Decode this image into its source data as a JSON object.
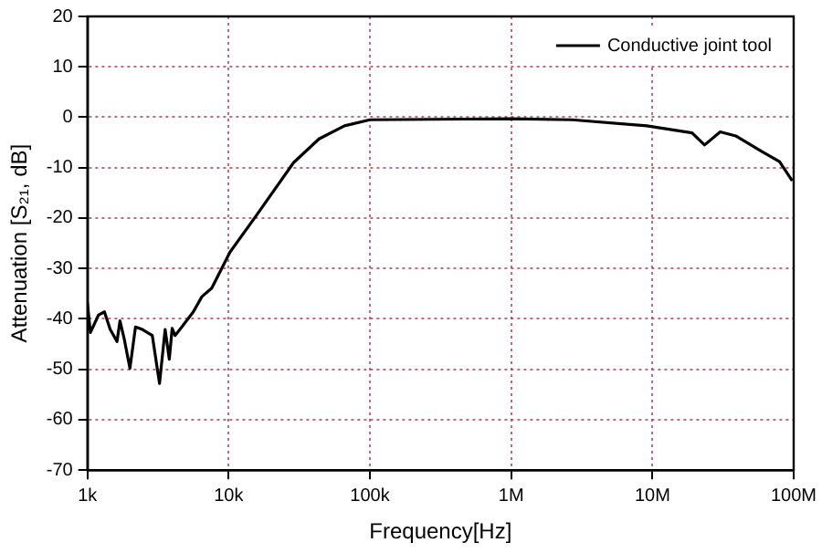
{
  "chart_data": {
    "type": "line",
    "xlabel": "Frequency[Hz]",
    "ylabel": "Attenuation [S₂₁, dB]",
    "x": [
      1000,
      1050,
      1200,
      1320,
      1450,
      1620,
      1700,
      1820,
      2000,
      2190,
      2450,
      2880,
      3240,
      3550,
      3800,
      3980,
      4170,
      4570,
      5620,
      6460,
      7590,
      10200,
      15500,
      28800,
      43600,
      66100,
      100000,
      1000000,
      2690000,
      9120000,
      19100000,
      23400000,
      30200000,
      38900000,
      58900000,
      79400000,
      97700000
    ],
    "series": [
      {
        "name": "Conductive joint tool",
        "color": "#000000",
        "values": [
          -36.8,
          -42.7,
          -39.2,
          -38.6,
          -42.1,
          -44.5,
          -40.4,
          -43.9,
          -49.8,
          -41.6,
          -42.1,
          -43.3,
          -52.8,
          -42.1,
          -48,
          -41.9,
          -43.3,
          -41.9,
          -38.6,
          -35.6,
          -33.9,
          -26.8,
          -19.7,
          -9.0,
          -4.3,
          -1.7,
          -0.5,
          -0.3,
          -0.5,
          -1.7,
          -3.1,
          -5.5,
          -2.9,
          -3.7,
          -6.7,
          -8.8,
          -12.6
        ]
      }
    ],
    "xlim": [
      1000,
      100000000
    ],
    "ylim": [
      -70,
      20
    ],
    "xticks": [
      {
        "value": 1000,
        "label": "1k"
      },
      {
        "value": 10000,
        "label": "10k"
      },
      {
        "value": 100000,
        "label": "100k"
      },
      {
        "value": 1000000,
        "label": "1M"
      },
      {
        "value": 10000000,
        "label": "10M"
      },
      {
        "value": 100000000,
        "label": "100M"
      }
    ],
    "yticks": [
      -70,
      -60,
      -50,
      -40,
      -30,
      -20,
      -10,
      0,
      10,
      20
    ],
    "log": "x",
    "grid": true,
    "legend": "top right",
    "marker": "none",
    "line_style": "solid"
  }
}
